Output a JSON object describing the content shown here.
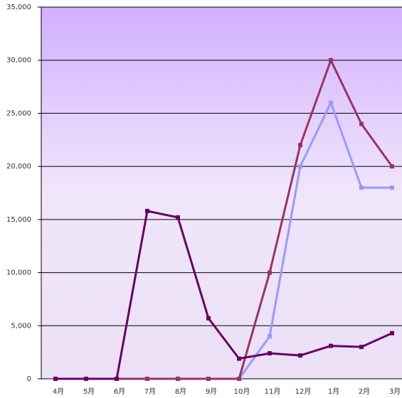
{
  "chart_data": {
    "type": "line",
    "categories": [
      "4月",
      "5月",
      "6月",
      "7月",
      "8月",
      "9月",
      "10月",
      "11月",
      "12月",
      "1月",
      "2月",
      "3月"
    ],
    "series": [
      {
        "color": "#9999ff",
        "values": [
          0,
          0,
          0,
          0,
          0,
          0,
          0,
          4000,
          20000,
          26000,
          18000,
          18000
        ]
      },
      {
        "color": "#993366",
        "values": [
          0,
          0,
          0,
          0,
          0,
          0,
          0,
          10000,
          22000,
          30000,
          24000,
          20000
        ]
      },
      {
        "color": "#660066",
        "values": [
          0,
          0,
          0,
          15800,
          15200,
          5700,
          1900,
          2400,
          2200,
          3100,
          3000,
          4300
        ]
      }
    ],
    "ylim": [
      0,
      35000
    ],
    "yticks": [
      0,
      {
        "value": 5000,
        "label": "5,000"
      },
      {
        "value": 10000,
        "label": "10,000"
      },
      {
        "value": 15000,
        "label": "15,000"
      },
      {
        "value": 20000,
        "label": "20,000"
      },
      {
        "value": 25000,
        "label": "25,000"
      },
      {
        "value": 30000,
        "label": "30,000"
      },
      {
        "value": 35000,
        "label": "35,000"
      }
    ],
    "grid": true
  }
}
